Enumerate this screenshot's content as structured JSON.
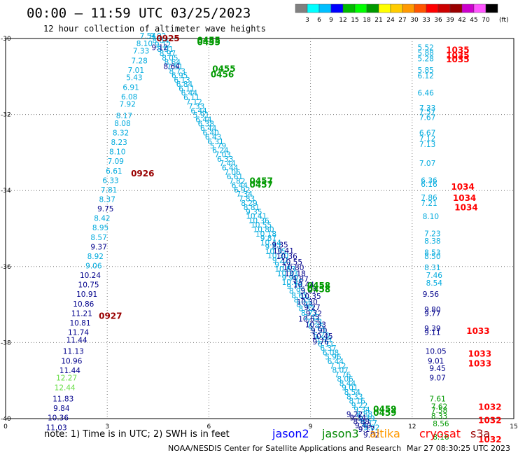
{
  "header": {
    "title": "00:00 – 11:59 UTC 03/25/2023",
    "subtitle": "12 hour collection of altimeter wave heights"
  },
  "legend": {
    "values": [
      "3",
      "6",
      "9",
      "12",
      "15",
      "18",
      "21",
      "24",
      "27",
      "30",
      "33",
      "36",
      "39",
      "42",
      "45",
      "70"
    ],
    "unit": "(ft)",
    "colors": [
      "#808080",
      "#00ffff",
      "#00bfff",
      "#0000ff",
      "#00bb00",
      "#00ff00",
      "#009900",
      "#ffff00",
      "#ffcc00",
      "#ff9900",
      "#ff5500",
      "#ff0000",
      "#cc0000",
      "#990000",
      "#cc00cc",
      "#ff55ff",
      "#000000"
    ]
  },
  "note": "note: 1) Time is in UTC; 2) SWH is in feet",
  "satellites": [
    {
      "name": "jason2",
      "color": "#0000ff"
    },
    {
      "name": "jason3",
      "color": "#008800"
    },
    {
      "name": "altika",
      "color": "#ff9900"
    },
    {
      "name": "cryosat",
      "color": "#ff0000"
    },
    {
      "name": "s3a",
      "color": "#990000"
    }
  ],
  "footer": {
    "credit": "NOAA/NESDIS Center for Satellite Applications and Research",
    "timestamp": "Mar 27 08:30:25 UTC 2023"
  },
  "chart_data": {
    "type": "scatter",
    "xlim": [
      0,
      15
    ],
    "ylim": [
      -40,
      -30
    ],
    "xticks": [
      0,
      3,
      6,
      9,
      12,
      15
    ],
    "yticks": [
      -30,
      -32,
      -34,
      -36,
      -38,
      -40
    ],
    "grid": true,
    "tracks": [
      {
        "color": "#00aadd",
        "points": [
          [
            4.2,
            -30.0,
            "7.54"
          ],
          [
            4.1,
            -30.2,
            "8.10"
          ],
          [
            4.0,
            -30.4,
            "7.33"
          ],
          [
            3.95,
            -30.65,
            "7.28"
          ],
          [
            3.85,
            -30.9,
            "7.01"
          ],
          [
            3.8,
            -31.1,
            "5.43"
          ],
          [
            3.7,
            -31.35,
            "6.91"
          ],
          [
            3.65,
            -31.6,
            "6.08"
          ],
          [
            3.6,
            -31.8,
            "7.92"
          ],
          [
            3.5,
            -32.1,
            "8.17"
          ],
          [
            3.45,
            -32.3,
            "8.08"
          ],
          [
            3.4,
            -32.55,
            "8.32"
          ],
          [
            3.35,
            -32.8,
            "8.23"
          ],
          [
            3.3,
            -33.05,
            "8.10"
          ],
          [
            3.25,
            -33.3,
            "7.09"
          ],
          [
            3.2,
            -33.55,
            "6.61"
          ],
          [
            3.1,
            -33.8,
            "6.33"
          ],
          [
            3.05,
            -34.05,
            "7.81"
          ],
          [
            3.0,
            -34.3,
            "8.37"
          ],
          [
            2.85,
            -34.8,
            "8.42"
          ],
          [
            2.8,
            -35.05,
            "8.95"
          ],
          [
            2.75,
            -35.3,
            "8.57"
          ],
          [
            2.65,
            -35.8,
            "8.92"
          ],
          [
            2.6,
            -36.05,
            "9.06"
          ],
          [
            12.4,
            -30.3,
            "5.52"
          ],
          [
            12.4,
            -30.45,
            "5.88"
          ],
          [
            12.4,
            -30.6,
            "5.28"
          ],
          [
            12.4,
            -30.9,
            "5.85"
          ],
          [
            12.4,
            -31.05,
            "6.12"
          ],
          [
            12.4,
            -31.5,
            "6.46"
          ],
          [
            12.45,
            -31.9,
            "7.33"
          ],
          [
            12.45,
            -32.0,
            "7.57"
          ],
          [
            12.45,
            -32.15,
            "7.67"
          ],
          [
            12.45,
            -32.55,
            "6.67"
          ],
          [
            12.45,
            -32.7,
            "7.12"
          ],
          [
            12.45,
            -32.85,
            "7.13"
          ],
          [
            12.45,
            -33.35,
            "7.07"
          ],
          [
            12.5,
            -33.8,
            "6.36"
          ],
          [
            12.5,
            -33.9,
            "6.16"
          ],
          [
            12.5,
            -34.25,
            "7.86"
          ],
          [
            12.5,
            -34.4,
            "7.21"
          ],
          [
            12.55,
            -34.75,
            "8.10"
          ],
          [
            12.6,
            -35.2,
            "7.23"
          ],
          [
            12.6,
            -35.4,
            "8.38"
          ],
          [
            12.6,
            -35.7,
            "8.53"
          ],
          [
            12.6,
            -35.8,
            "8.50"
          ],
          [
            12.6,
            -36.1,
            "8.31"
          ],
          [
            12.65,
            -36.3,
            "7.46"
          ],
          [
            12.65,
            -36.5,
            "8.54"
          ]
        ]
      },
      {
        "color": "#00008b",
        "points": [
          [
            2.5,
            -36.3,
            "10.24"
          ],
          [
            2.45,
            -36.55,
            "10.75"
          ],
          [
            2.4,
            -36.8,
            "10.91"
          ],
          [
            2.3,
            -37.05,
            "10.86"
          ],
          [
            2.25,
            -37.3,
            "11.21"
          ],
          [
            2.2,
            -37.55,
            "10.81"
          ],
          [
            2.15,
            -37.8,
            "11.74"
          ],
          [
            2.1,
            -38.0,
            "11.44"
          ],
          [
            2.0,
            -38.3,
            "11.13"
          ],
          [
            1.95,
            -38.55,
            "10.96"
          ],
          [
            1.9,
            -38.8,
            "11.44"
          ],
          [
            1.7,
            -39.55,
            "11.83"
          ],
          [
            1.65,
            -39.8,
            "9.84"
          ],
          [
            1.55,
            -40.05,
            "10.36"
          ],
          [
            1.5,
            -40.3,
            "11.03"
          ],
          [
            2.75,
            -35.55,
            "9.37"
          ],
          [
            2.95,
            -34.55,
            "9.75"
          ],
          [
            12.55,
            -36.8,
            "9.56"
          ],
          [
            12.6,
            -37.2,
            "9.80"
          ],
          [
            12.6,
            -37.3,
            "9.77"
          ],
          [
            12.6,
            -37.7,
            "9.39"
          ],
          [
            12.6,
            -37.8,
            "9.11"
          ],
          [
            12.7,
            -38.3,
            "10.05"
          ],
          [
            12.7,
            -38.55,
            "9.01"
          ],
          [
            12.75,
            -38.75,
            "9.45"
          ],
          [
            12.75,
            -39.0,
            "9.07"
          ]
        ]
      },
      {
        "color": "#66dd44",
        "points": [
          [
            1.8,
            -39.0,
            "12.27"
          ],
          [
            1.75,
            -39.25,
            "12.44"
          ]
        ]
      },
      {
        "color": "#009900",
        "points": [
          [
            12.75,
            -39.55,
            "7.61"
          ],
          [
            12.8,
            -39.75,
            "7.62"
          ],
          [
            12.8,
            -39.85,
            "7.58"
          ],
          [
            12.8,
            -40.0,
            "8.33"
          ],
          [
            12.85,
            -40.2,
            "8.56"
          ],
          [
            12.85,
            -40.55,
            "8.16"
          ]
        ]
      }
    ],
    "diagonal": {
      "color": "#00aadd",
      "start": [
        4.5,
        -30.0
      ],
      "end": [
        10.8,
        -40.3
      ],
      "values": [
        "9.92",
        "8.64",
        "9.12",
        "8.91",
        "8.97",
        "8.05",
        "8.64",
        "7.51",
        "8.73",
        "6.95",
        "6.13",
        "6.84",
        "6.11",
        "6.44",
        "6.11",
        "7.12",
        "7.33",
        "6.44",
        "5.91",
        "6.44",
        "6.38",
        "6.44",
        "6.40",
        "6.43",
        "6.31",
        "5.79",
        "6.24",
        "7.03",
        "6.33",
        "7.44",
        "6.44",
        "7.06",
        "6.61",
        "7.82",
        "6.44",
        "6.92",
        "7.34",
        "7.83",
        "8.29",
        "8.81",
        "9.35",
        "10.41",
        "10.36",
        "10.55",
        "10.80",
        "10.18",
        "9.87",
        "10.44",
        "9.87",
        "10.35",
        "10.30",
        "9.27",
        "9.72",
        "10.63",
        "10.33",
        "9.90",
        "10.45",
        "9.76",
        "8.93",
        "8.65",
        "8.33",
        "8.44",
        "8.33",
        "8.73",
        "7.45",
        "7.53",
        "6.45",
        "5.91",
        "6.23",
        "5.99",
        "6.11",
        "6.37",
        "6.08",
        "5.96",
        "6.44",
        "7.12",
        "8.07",
        "7.76",
        "8.06",
        "8.44",
        "9.01",
        "8.54",
        "8.33",
        "8.16",
        "9.22",
        "9.34",
        "8.88",
        "9.49",
        "9.17",
        "9.02"
      ]
    },
    "diagonal_dark": {
      "color": "#00008b",
      "values": [
        "9.12",
        "8.64",
        "9.35",
        "10.41",
        "10.36",
        "10.55",
        "10.80",
        "10.18",
        "9.87",
        "10.44",
        "9.87",
        "10.35",
        "10.30",
        "9.27",
        "9.72",
        "10.63",
        "10.33",
        "9.90",
        "10.45",
        "9.76",
        "9.22",
        "9.34",
        "8.88",
        "9.49",
        "9.17",
        "9.02"
      ]
    },
    "time_labels": [
      {
        "label": "0925",
        "x": 4.45,
        "y": -30.0,
        "color": "#990000"
      },
      {
        "label": "0455",
        "x": 5.65,
        "y": -30.05,
        "color": "#009900"
      },
      {
        "label": "0455",
        "x": 5.65,
        "y": -30.1,
        "color": "#009900"
      },
      {
        "label": "0455",
        "x": 6.1,
        "y": -30.8,
        "color": "#009900"
      },
      {
        "label": "0456",
        "x": 6.05,
        "y": -30.95,
        "color": "#009900"
      },
      {
        "label": "0926",
        "x": 3.7,
        "y": -33.55,
        "color": "#990000"
      },
      {
        "label": "0457",
        "x": 7.2,
        "y": -33.75,
        "color": "#009900"
      },
      {
        "label": "0457",
        "x": 7.2,
        "y": -33.85,
        "color": "#009900"
      },
      {
        "label": "0458",
        "x": 8.9,
        "y": -36.5,
        "color": "#009900"
      },
      {
        "label": "0458",
        "x": 8.9,
        "y": -36.6,
        "color": "#009900"
      },
      {
        "label": "0927",
        "x": 2.75,
        "y": -37.3,
        "color": "#990000"
      },
      {
        "label": "0459",
        "x": 10.85,
        "y": -39.75,
        "color": "#009900"
      },
      {
        "label": "0459",
        "x": 10.85,
        "y": -39.85,
        "color": "#009900"
      },
      {
        "label": "1035",
        "x": 13.0,
        "y": -30.3,
        "color": "#ff0000"
      },
      {
        "label": "1035",
        "x": 13.0,
        "y": -30.45,
        "color": "#ff0000"
      },
      {
        "label": "1035",
        "x": 13.0,
        "y": -30.55,
        "color": "#ff0000"
      },
      {
        "label": "1034",
        "x": 13.15,
        "y": -33.9,
        "color": "#ff0000"
      },
      {
        "label": "1034",
        "x": 13.2,
        "y": -34.2,
        "color": "#ff0000"
      },
      {
        "label": "1034",
        "x": 13.25,
        "y": -34.45,
        "color": "#ff0000"
      },
      {
        "label": "1033",
        "x": 13.6,
        "y": -37.7,
        "color": "#ff0000"
      },
      {
        "label": "1033",
        "x": 13.65,
        "y": -38.3,
        "color": "#ff0000"
      },
      {
        "label": "1033",
        "x": 13.65,
        "y": -38.55,
        "color": "#ff0000"
      },
      {
        "label": "1032",
        "x": 13.95,
        "y": -39.7,
        "color": "#ff0000"
      },
      {
        "label": "1032",
        "x": 13.95,
        "y": -40.05,
        "color": "#ff0000"
      },
      {
        "label": "1032",
        "x": 13.95,
        "y": -40.55,
        "color": "#ff0000"
      }
    ]
  }
}
